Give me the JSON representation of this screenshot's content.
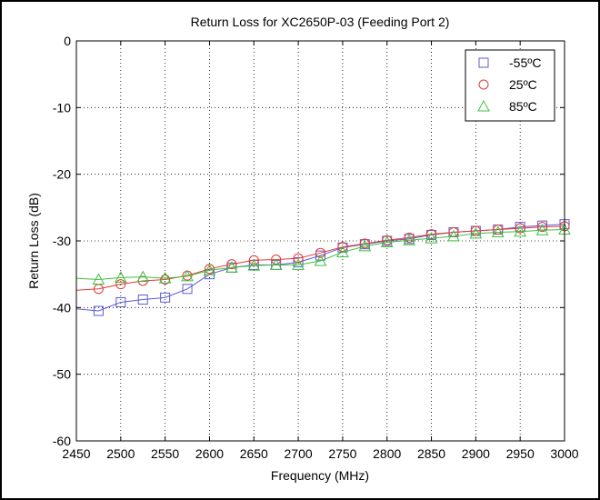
{
  "chart_data": {
    "type": "line",
    "title": "Return Loss for XC2650P-03 (Feeding Port 2)",
    "xlabel": "Frequency (MHz)",
    "ylabel": "Return Loss (dB)",
    "xlim": [
      2450,
      3000
    ],
    "ylim": [
      -60,
      0
    ],
    "xticks": [
      2450,
      2500,
      2550,
      2600,
      2650,
      2700,
      2750,
      2800,
      2850,
      2900,
      2950,
      3000
    ],
    "yticks": [
      0,
      -10,
      -20,
      -30,
      -40,
      -50,
      -60
    ],
    "grid": true,
    "legend_position": "top-right",
    "series": [
      {
        "name": "-55ºC",
        "marker": "square",
        "color": "#5b5bd6",
        "x": [
          2450,
          2475,
          2500,
          2525,
          2550,
          2575,
          2600,
          2625,
          2650,
          2675,
          2700,
          2725,
          2750,
          2775,
          2800,
          2825,
          2850,
          2875,
          2900,
          2925,
          2950,
          2975,
          3000
        ],
        "y": [
          -40.2,
          -40.5,
          -39.2,
          -38.8,
          -38.5,
          -37.2,
          -35.0,
          -34.0,
          -33.6,
          -33.6,
          -33.2,
          -32.2,
          -31.0,
          -30.5,
          -30.0,
          -29.7,
          -29.1,
          -28.7,
          -28.5,
          -28.3,
          -27.9,
          -27.7,
          -27.5
        ]
      },
      {
        "name": "25ºC",
        "marker": "circle",
        "color": "#e03a3a",
        "x": [
          2450,
          2475,
          2500,
          2525,
          2550,
          2575,
          2600,
          2625,
          2650,
          2675,
          2700,
          2725,
          2750,
          2775,
          2800,
          2825,
          2850,
          2875,
          2900,
          2925,
          2950,
          2975,
          3000
        ],
        "y": [
          -37.4,
          -37.2,
          -36.5,
          -36.0,
          -35.8,
          -35.2,
          -34.2,
          -33.5,
          -32.9,
          -32.8,
          -32.6,
          -31.8,
          -30.9,
          -30.4,
          -29.9,
          -29.5,
          -29.0,
          -28.7,
          -28.5,
          -28.3,
          -28.1,
          -27.9,
          -27.8
        ]
      },
      {
        "name": "85ºC",
        "marker": "triangle",
        "color": "#3fbf3f",
        "x": [
          2450,
          2475,
          2500,
          2525,
          2550,
          2575,
          2600,
          2625,
          2650,
          2675,
          2700,
          2725,
          2750,
          2775,
          2800,
          2825,
          2850,
          2875,
          2900,
          2925,
          2950,
          2975,
          3000
        ],
        "y": [
          -35.6,
          -35.8,
          -35.5,
          -35.4,
          -35.6,
          -35.3,
          -34.4,
          -34.0,
          -33.7,
          -33.6,
          -33.6,
          -33.0,
          -31.7,
          -30.8,
          -30.2,
          -29.9,
          -29.6,
          -29.3,
          -28.9,
          -28.7,
          -28.6,
          -28.4,
          -28.3
        ]
      }
    ]
  }
}
